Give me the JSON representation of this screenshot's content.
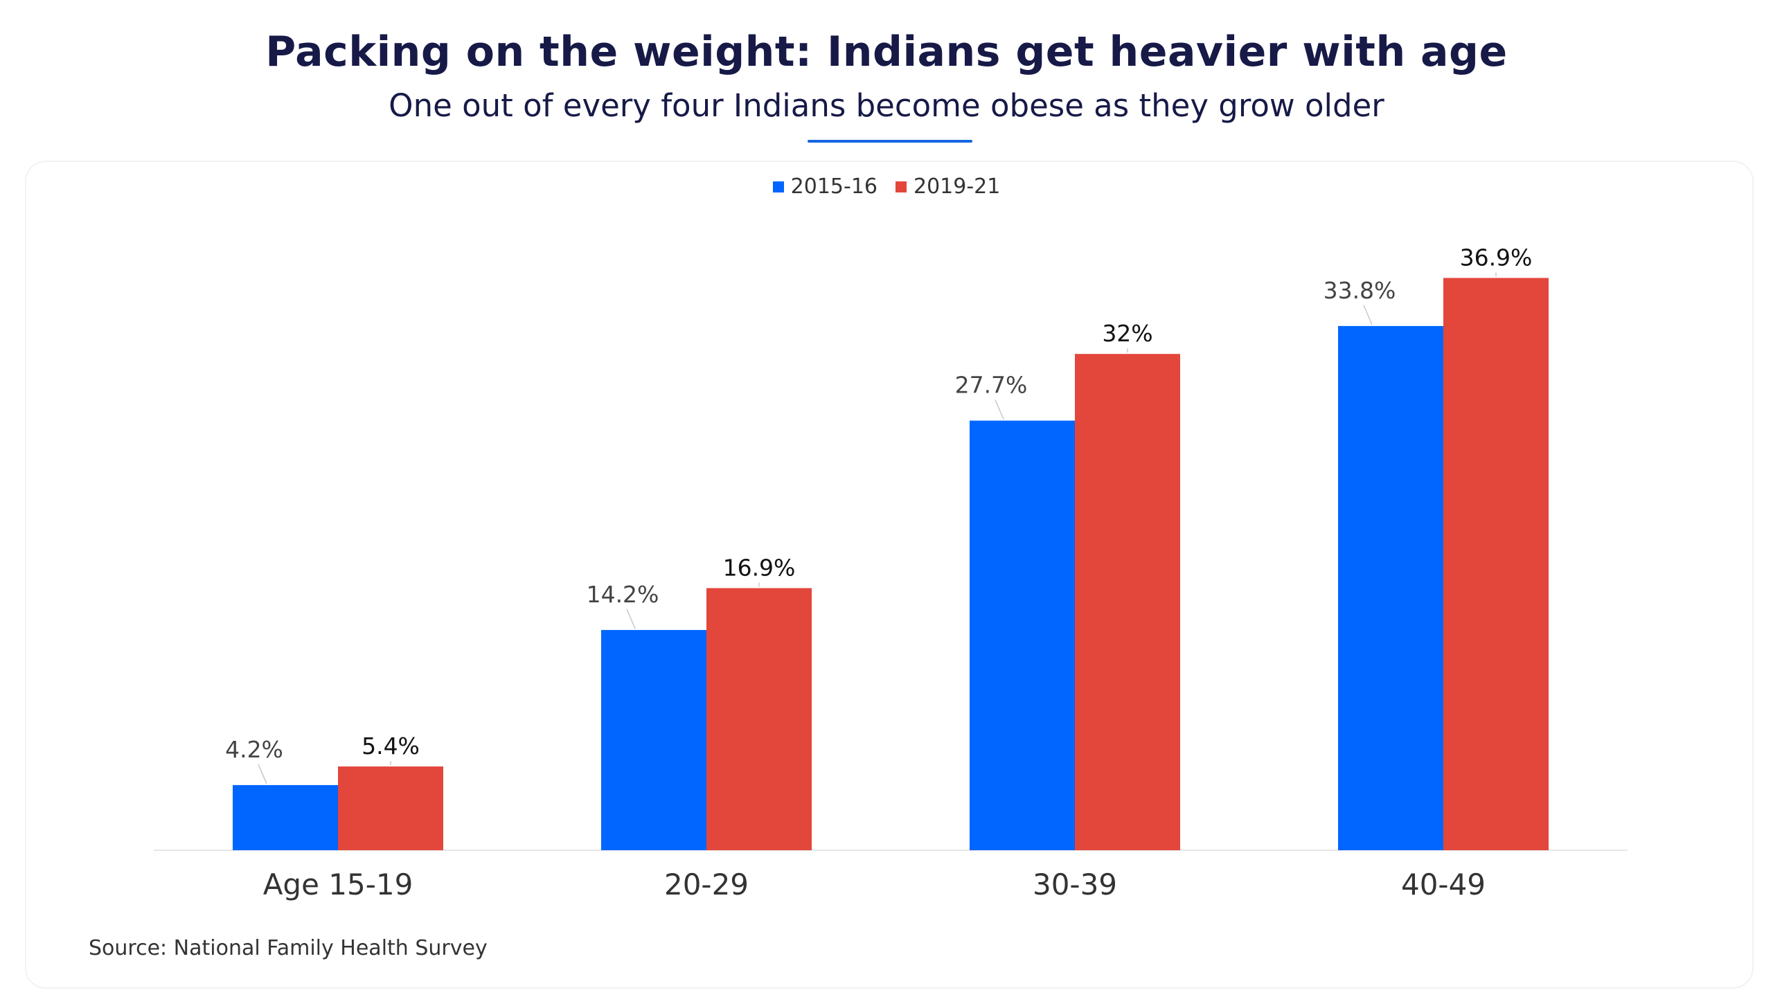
{
  "header": {
    "title": "Packing on the weight: Indians get heavier with age",
    "subtitle": "One out of every four Indians become obese as they grow older"
  },
  "colors": {
    "series_2015": "#0066ff",
    "series_2019": "#e3463b",
    "accent": "#1565e0"
  },
  "chart_data": {
    "type": "bar",
    "categories": [
      "Age 15-19",
      "20-29",
      "30-39",
      "40-49"
    ],
    "series": [
      {
        "name": "2015-16",
        "values": [
          4.2,
          14.2,
          27.7,
          33.8
        ],
        "labels": [
          "4.2%",
          "14.2%",
          "27.7%",
          "33.8%"
        ],
        "color": "#0066ff"
      },
      {
        "name": "2019-21",
        "values": [
          5.4,
          16.9,
          32,
          36.9
        ],
        "labels": [
          "5.4%",
          "16.9%",
          "32%",
          "36.9%"
        ],
        "color": "#e3463b"
      }
    ],
    "ylim": [
      0,
      40
    ],
    "grid": false,
    "legend_position": "top-center"
  },
  "footer": {
    "source": "Source: National Family Health Survey"
  }
}
